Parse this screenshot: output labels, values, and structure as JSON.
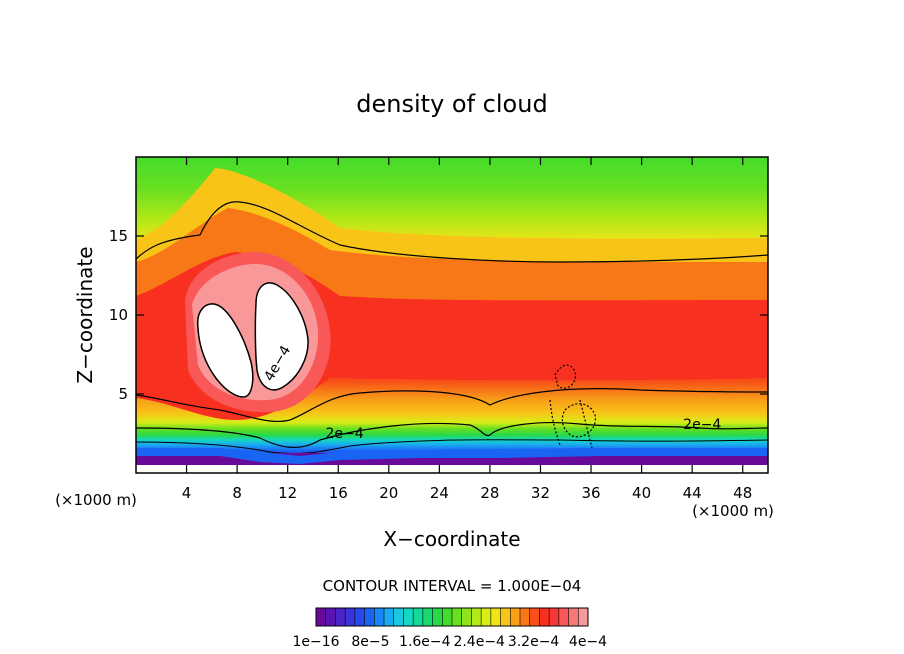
{
  "chart_data": {
    "type": "heatmap",
    "title": "density of cloud",
    "xlabel": "X−coordinate",
    "ylabel": "Z−coordinate",
    "x_unit_left": "(×1000 m)",
    "x_unit_right": "(×1000 m)",
    "x_ticks": [
      4,
      8,
      12,
      16,
      20,
      24,
      28,
      32,
      36,
      40,
      44,
      48
    ],
    "x_tick_labels": [
      "4",
      "8",
      "12",
      "16",
      "20",
      "24",
      "28",
      "32",
      "36",
      "40",
      "44",
      "48"
    ],
    "y_ticks": [
      5,
      10,
      15
    ],
    "y_tick_labels": [
      "5",
      "10",
      "15"
    ],
    "xlim": [
      0,
      50
    ],
    "ylim": [
      0,
      20
    ],
    "contour_labels": [
      {
        "text": "4e−4",
        "x": 11.5,
        "z": 6.8
      },
      {
        "text": "2e−4",
        "x": 16.5,
        "z": 2.2
      },
      {
        "text": "2e−4",
        "x": 44.8,
        "z": 2.8
      }
    ],
    "contour_interval_text": "CONTOUR INTERVAL = 1.000E−04",
    "colorbar": {
      "colors": [
        "#6a0a9a",
        "#5a14b4",
        "#4a24c8",
        "#3a34dc",
        "#2848ec",
        "#1a64f4",
        "#1a88f4",
        "#1aacf0",
        "#1ac8e0",
        "#14d8c0",
        "#10dc98",
        "#1ad870",
        "#28d848",
        "#44dc2c",
        "#68e020",
        "#90e41c",
        "#b4e818",
        "#d8ec18",
        "#f0e418",
        "#f8c418",
        "#f8a018",
        "#f87818",
        "#f85018",
        "#f83020",
        "#f83838",
        "#f85858",
        "#f87878",
        "#f89898"
      ],
      "labels": [
        "1e−16",
        "8e−5",
        "1.6e−4",
        "2.4e−4",
        "3.2e−4",
        "4e−4"
      ],
      "label_positions": [
        0,
        0.2,
        0.4,
        0.6,
        0.8,
        1.0
      ]
    }
  }
}
